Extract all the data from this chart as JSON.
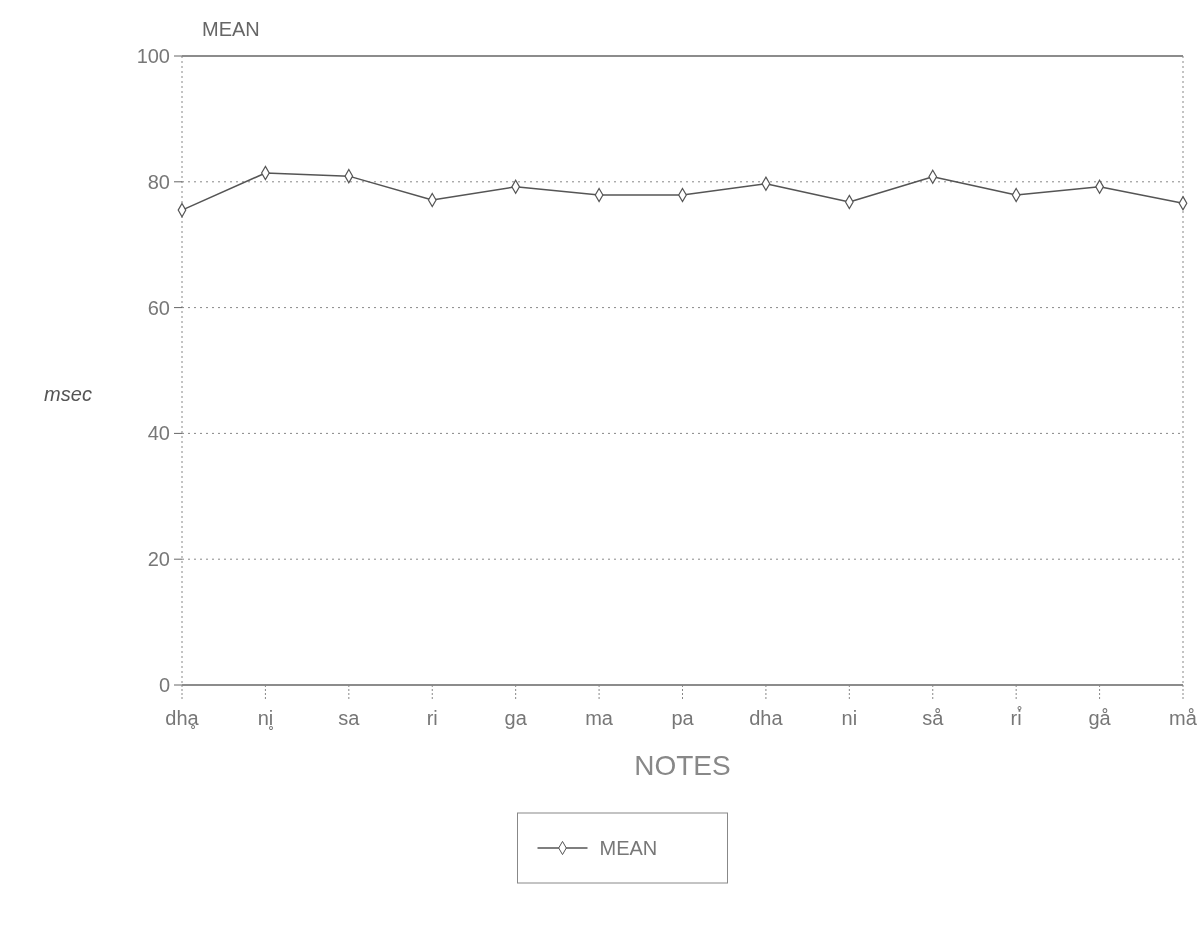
{
  "chart_data": {
    "type": "line",
    "title": "MEAN",
    "xlabel": "NOTES",
    "ylabel": "msec",
    "categories": [
      "dhḁ",
      "ni̥",
      "sa",
      "ri",
      "ga",
      "ma",
      "pa",
      "dha",
      "ni",
      "så",
      "ri̊",
      "gå",
      "må"
    ],
    "series": [
      {
        "name": "MEAN",
        "color": "#555555",
        "values": [
          75.5,
          81.4,
          80.9,
          77.1,
          79.2,
          77.9,
          77.9,
          79.7,
          76.8,
          80.8,
          77.9,
          79.2,
          76.6
        ]
      }
    ],
    "ylim": [
      0,
      100
    ],
    "yticks": [
      0,
      20,
      40,
      60,
      80,
      100
    ],
    "grid": "y",
    "legend": "bottom",
    "marker": "diamond",
    "line_style": "solid"
  }
}
